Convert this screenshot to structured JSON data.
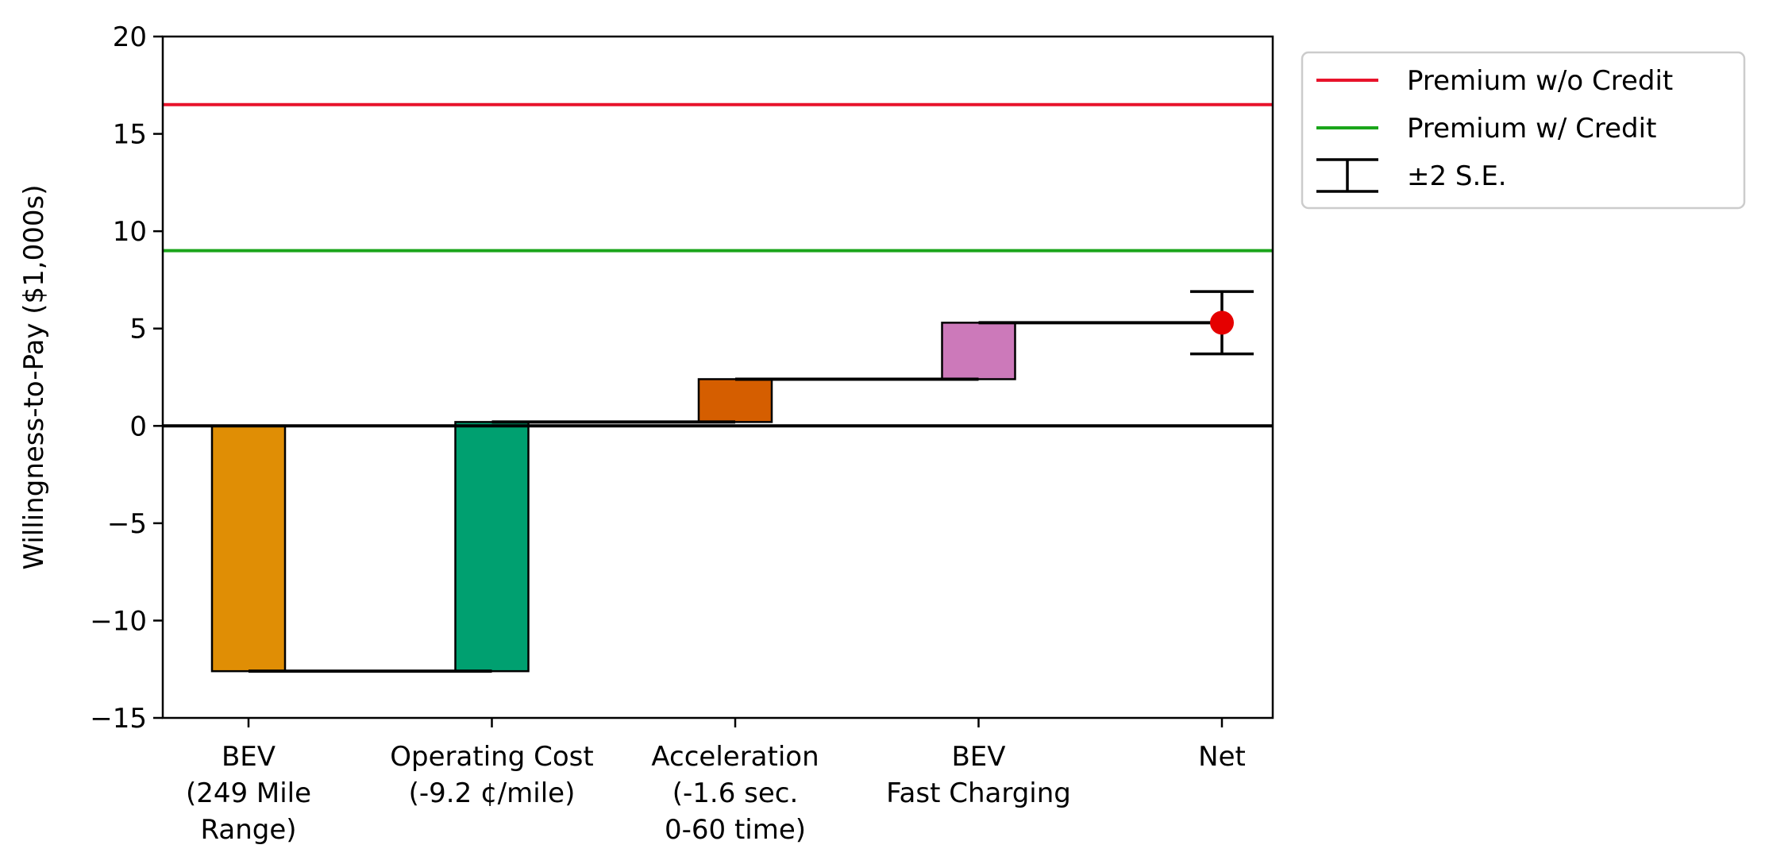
{
  "chart_data": {
    "type": "waterfall",
    "title": "",
    "xlabel": "",
    "ylabel": "Willingness-to-Pay ($1,000s)",
    "ylim": [
      -15,
      20
    ],
    "yticks": [
      {
        "value": -15,
        "label": "−15"
      },
      {
        "value": -10,
        "label": "−10"
      },
      {
        "value": -5,
        "label": "−5"
      },
      {
        "value": 0,
        "label": "0"
      },
      {
        "value": 5,
        "label": "5"
      },
      {
        "value": 10,
        "label": "10"
      },
      {
        "value": 15,
        "label": "15"
      },
      {
        "value": 20,
        "label": "20"
      }
    ],
    "categories": [
      {
        "label_lines": [
          "BEV",
          "(249 Mile",
          "Range)"
        ]
      },
      {
        "label_lines": [
          "Operating Cost",
          "(-9.2 ¢/mile)"
        ]
      },
      {
        "label_lines": [
          "Acceleration",
          "(-1.6 sec.",
          "0-60 time)"
        ]
      },
      {
        "label_lines": [
          "BEV",
          "Fast Charging"
        ]
      },
      {
        "label_lines": [
          "Net"
        ]
      }
    ],
    "steps": [
      {
        "start": 0,
        "end": -12.6,
        "color": "#E08E05"
      },
      {
        "start": -12.6,
        "end": 0.2,
        "color": "#00A070"
      },
      {
        "start": 0.2,
        "end": 2.4,
        "color": "#D55E00"
      },
      {
        "start": 2.4,
        "end": 5.3,
        "color": "#CC79BA"
      }
    ],
    "net": {
      "value": 5.3,
      "error_low": 3.7,
      "error_high": 6.9,
      "color": "#E50000"
    },
    "reference_lines": [
      {
        "name": "Premium w/o Credit",
        "value": 16.5,
        "color": "#E8132B"
      },
      {
        "name": "Premium w/ Credit",
        "value": 9.0,
        "color": "#1AA51A"
      }
    ],
    "legend": {
      "position": "outside-top-right",
      "entries": [
        {
          "label": "Premium w/o Credit",
          "kind": "line",
          "color": "#E8132B"
        },
        {
          "label": "Premium w/ Credit",
          "kind": "line",
          "color": "#1AA51A"
        },
        {
          "label": "±2 S.E.",
          "kind": "errorbar",
          "color": "#000000"
        }
      ]
    },
    "grid": false
  }
}
